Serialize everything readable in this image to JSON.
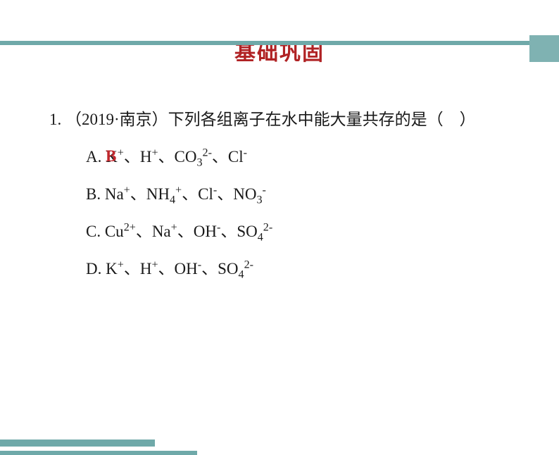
{
  "colors": {
    "teal": "#6fa9a9",
    "title_red": "#b02224",
    "answer_red": "#c1272d",
    "text": "#1a1a1a",
    "corner": "#7fb2b2"
  },
  "sizes": {
    "title_fontsize": 30,
    "body_fontsize": 23,
    "answer_fontsize": 23
  },
  "title": "基础巩固",
  "question": {
    "number": "1.",
    "source": "（2019·南京）",
    "stem_part1": "下列各组离子在水中能大量共存的是（",
    "stem_part2": "）",
    "answer": "B",
    "options": {
      "A": {
        "label": "A. ",
        "ions": [
          {
            "base": "K",
            "sup": "+"
          },
          {
            "base": "H",
            "sup": "+"
          },
          {
            "base": "CO",
            "sub": "3",
            "sup": "2-"
          },
          {
            "base": "Cl",
            "sup": "-"
          }
        ]
      },
      "B": {
        "label": "B. ",
        "ions": [
          {
            "base": "Na",
            "sup": "+"
          },
          {
            "base": "NH",
            "sub": "4",
            "sup": "+"
          },
          {
            "base": "Cl",
            "sup": "-"
          },
          {
            "base": "NO",
            "sub": "3",
            "sup": "-"
          }
        ]
      },
      "C": {
        "label": "C. ",
        "ions": [
          {
            "base": "Cu",
            "sup": "2+"
          },
          {
            "base": "Na",
            "sup": "+"
          },
          {
            "base": "OH",
            "sup": "-"
          },
          {
            "base": "SO",
            "sub": "4",
            "sup": "2-"
          }
        ]
      },
      "D": {
        "label": "D. ",
        "ions": [
          {
            "base": "K",
            "sup": "+"
          },
          {
            "base": "H",
            "sup": "+"
          },
          {
            "base": "OH",
            "sup": "-"
          },
          {
            "base": "SO",
            "sub": "4",
            "sup": "2-"
          }
        ]
      }
    },
    "separator": "、"
  }
}
